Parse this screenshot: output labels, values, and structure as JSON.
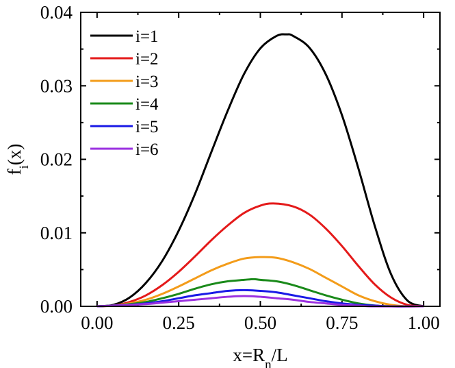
{
  "chart_data": {
    "type": "line",
    "title": "",
    "xlabel": {
      "main": "x=R",
      "sub": "n",
      "tail": "/L"
    },
    "ylabel": {
      "main": "f",
      "sub": "i",
      "tail": "(x)"
    },
    "xlim": [
      -0.05,
      1.05
    ],
    "ylim": [
      0,
      0.04
    ],
    "xticks": [
      0.0,
      0.25,
      0.5,
      0.75,
      1.0
    ],
    "xtick_labels": [
      "0.00",
      "0.25",
      "0.50",
      "0.75",
      "1.00"
    ],
    "yticks": [
      0.0,
      0.01,
      0.02,
      0.03,
      0.04
    ],
    "ytick_labels": [
      "0.00",
      "0.01",
      "0.02",
      "0.03",
      "0.04"
    ],
    "grid": false,
    "legend_position": "top-left",
    "series": [
      {
        "name": "i=1",
        "color": "#000000",
        "x": [
          0,
          0.05,
          0.1,
          0.15,
          0.2,
          0.25,
          0.3,
          0.35,
          0.4,
          0.45,
          0.5,
          0.55,
          0.58,
          0.6,
          0.65,
          0.7,
          0.75,
          0.8,
          0.85,
          0.9,
          0.95,
          1.0
        ],
        "values": [
          0,
          0.0002,
          0.0012,
          0.0032,
          0.0062,
          0.0103,
          0.0153,
          0.021,
          0.0266,
          0.0316,
          0.0351,
          0.0368,
          0.037,
          0.0368,
          0.0352,
          0.0316,
          0.026,
          0.0188,
          0.011,
          0.0044,
          0.0008,
          0
        ]
      },
      {
        "name": "i=2",
        "color": "#e41a1a",
        "x": [
          0,
          0.05,
          0.1,
          0.15,
          0.2,
          0.25,
          0.3,
          0.35,
          0.4,
          0.45,
          0.5,
          0.54,
          0.6,
          0.65,
          0.7,
          0.75,
          0.8,
          0.85,
          0.9,
          0.95,
          1.0
        ],
        "values": [
          0,
          0.0001,
          0.0006,
          0.0015,
          0.0029,
          0.0047,
          0.0068,
          0.009,
          0.011,
          0.0127,
          0.0137,
          0.014,
          0.0136,
          0.0125,
          0.0106,
          0.0082,
          0.0055,
          0.003,
          0.0012,
          0.0002,
          0
        ]
      },
      {
        "name": "i=3",
        "color": "#f39c1a",
        "x": [
          0,
          0.05,
          0.1,
          0.15,
          0.2,
          0.25,
          0.3,
          0.35,
          0.4,
          0.45,
          0.5,
          0.55,
          0.6,
          0.65,
          0.7,
          0.75,
          0.8,
          0.85,
          0.9,
          0.95,
          1.0
        ],
        "values": [
          0,
          0.0001,
          0.0004,
          0.0009,
          0.0017,
          0.0027,
          0.0038,
          0.0049,
          0.0058,
          0.0065,
          0.0067,
          0.0066,
          0.006,
          0.0051,
          0.0039,
          0.0027,
          0.0015,
          0.0007,
          0.0002,
          0,
          0
        ]
      },
      {
        "name": "i=4",
        "color": "#1a8a1a",
        "x": [
          0,
          0.05,
          0.1,
          0.15,
          0.2,
          0.25,
          0.3,
          0.35,
          0.4,
          0.45,
          0.48,
          0.5,
          0.55,
          0.6,
          0.65,
          0.7,
          0.75,
          0.8,
          0.85,
          0.9,
          1.0
        ],
        "values": [
          0,
          0.0001,
          0.0003,
          0.0006,
          0.0011,
          0.0017,
          0.0024,
          0.003,
          0.0034,
          0.0036,
          0.0037,
          0.0036,
          0.0034,
          0.0029,
          0.0022,
          0.0015,
          0.0009,
          0.0004,
          0.0001,
          0,
          0
        ]
      },
      {
        "name": "i=5",
        "color": "#1a1ae6",
        "x": [
          0,
          0.05,
          0.1,
          0.15,
          0.2,
          0.25,
          0.3,
          0.35,
          0.4,
          0.45,
          0.5,
          0.55,
          0.6,
          0.65,
          0.7,
          0.75,
          0.8,
          0.85,
          0.9,
          1.0
        ],
        "values": [
          0,
          0.0001,
          0.0002,
          0.0004,
          0.0007,
          0.0011,
          0.0015,
          0.0018,
          0.0021,
          0.0022,
          0.0021,
          0.0019,
          0.0015,
          0.0011,
          0.0007,
          0.0004,
          0.0002,
          0.0001,
          0,
          0
        ]
      },
      {
        "name": "i=6",
        "color": "#9b30e0",
        "x": [
          0,
          0.05,
          0.1,
          0.15,
          0.2,
          0.25,
          0.3,
          0.35,
          0.4,
          0.45,
          0.5,
          0.55,
          0.6,
          0.65,
          0.7,
          0.75,
          0.8,
          0.85,
          1.0
        ],
        "values": [
          0,
          0.0001,
          0.0002,
          0.0003,
          0.0005,
          0.0007,
          0.0009,
          0.0011,
          0.0013,
          0.0014,
          0.0013,
          0.0011,
          0.0009,
          0.0006,
          0.0004,
          0.0002,
          0.0001,
          0,
          0
        ]
      }
    ]
  }
}
